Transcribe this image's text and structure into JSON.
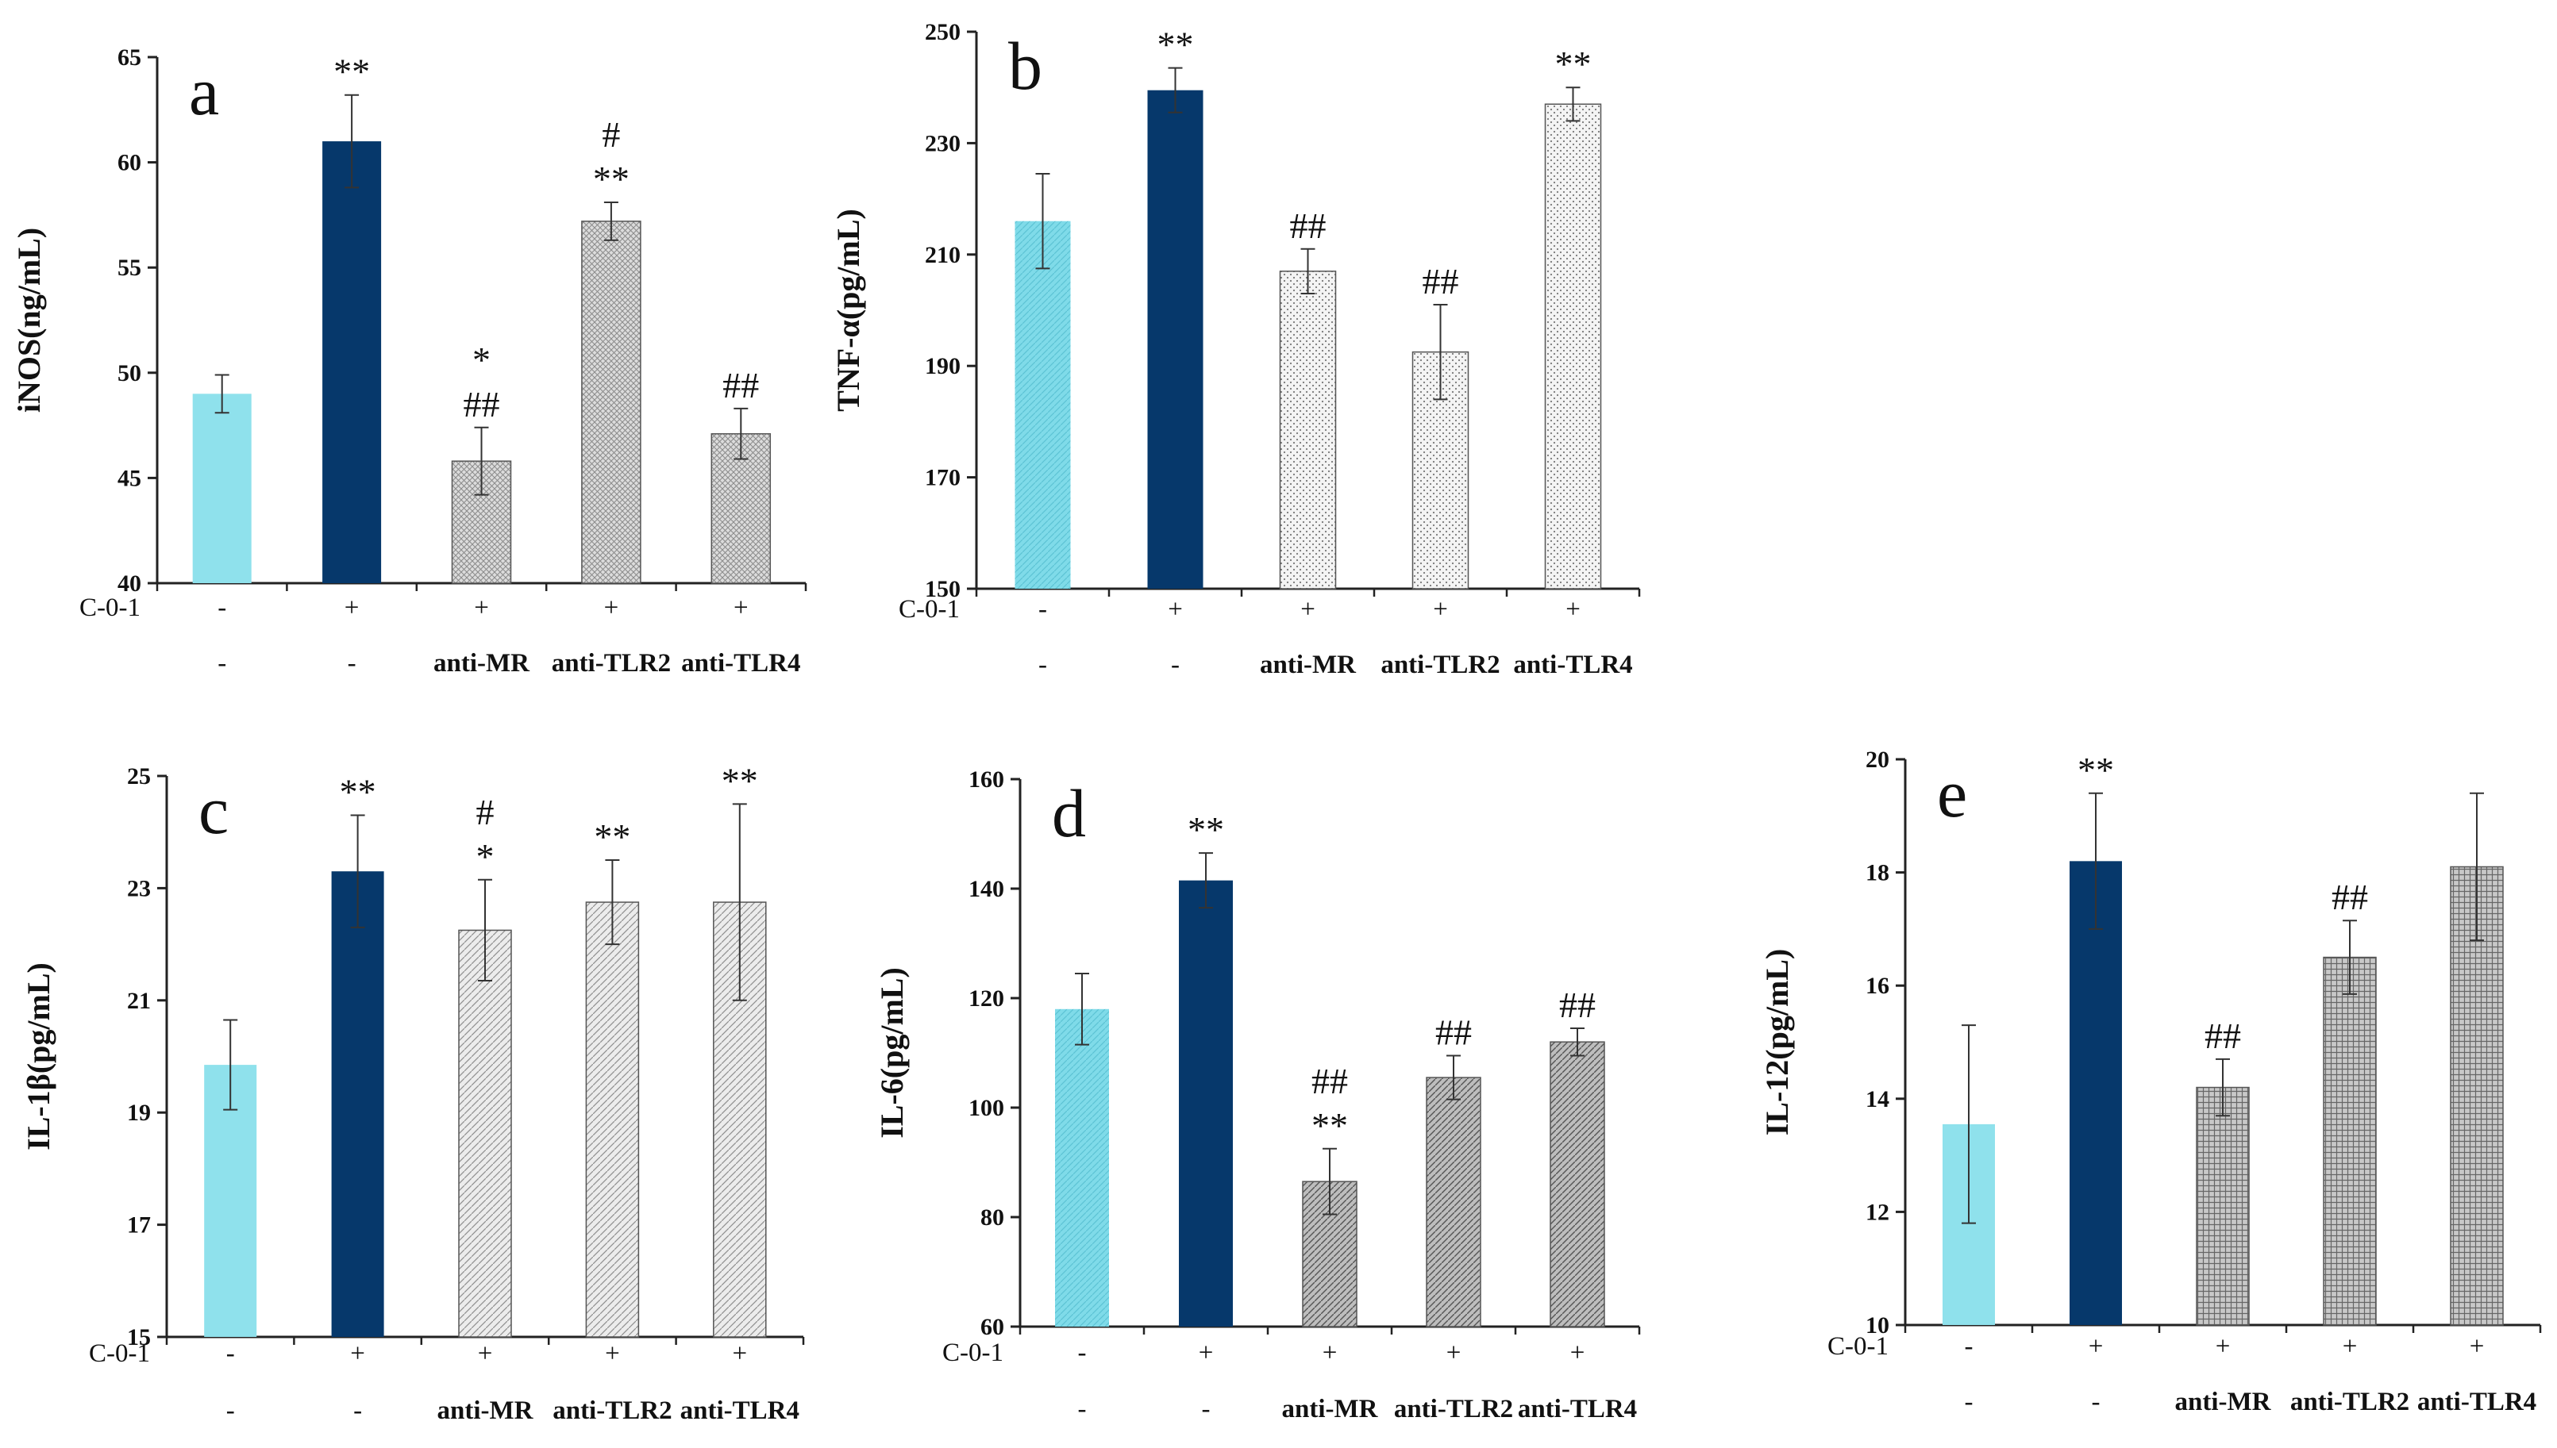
{
  "figure": {
    "rows": {
      "c01_label": "C-0-1"
    },
    "colors": {
      "control": "#8fe1ec",
      "c01": "#06386b",
      "treated_fill": "#e9e9e9",
      "axis": "#222222",
      "dark_hatch": "#888888"
    }
  },
  "chart_data": [
    {
      "id": "a",
      "type": "bar",
      "panel_label": "a",
      "ylabel": "iNOS(ng/mL)",
      "ylim": [
        40,
        65
      ],
      "yticks": [
        40,
        45,
        50,
        55,
        60,
        65
      ],
      "c01_row": [
        "-",
        "+",
        "+",
        "+",
        "+"
      ],
      "categories": [
        "-",
        "-",
        "anti-MR",
        "anti-TLR2",
        "anti-TLR4"
      ],
      "values": [
        49.0,
        61.0,
        45.8,
        57.2,
        47.1
      ],
      "errors": [
        0.9,
        2.2,
        1.6,
        0.9,
        1.2
      ],
      "annotations": [
        [
          "",
          ""
        ],
        [
          "**",
          ""
        ],
        [
          "##",
          "*"
        ],
        [
          "**",
          "#"
        ],
        [
          "##",
          ""
        ]
      ]
    },
    {
      "id": "b",
      "type": "bar",
      "panel_label": "b",
      "ylabel": "TNF-α(pg/mL)",
      "ylim": [
        150,
        250
      ],
      "yticks": [
        150,
        170,
        190,
        210,
        230,
        250
      ],
      "c01_row": [
        "-",
        "+",
        "+",
        "+",
        "+"
      ],
      "categories": [
        "-",
        "-",
        "anti-MR",
        "anti-TLR2",
        "anti-TLR4"
      ],
      "values": [
        216,
        239.5,
        207,
        192.5,
        237
      ],
      "errors": [
        8.5,
        4.0,
        4.0,
        8.5,
        3.0
      ],
      "annotations": [
        [
          "",
          ""
        ],
        [
          "**",
          ""
        ],
        [
          "##",
          ""
        ],
        [
          "##",
          ""
        ],
        [
          "**",
          ""
        ]
      ]
    },
    {
      "id": "c",
      "type": "bar",
      "panel_label": "c",
      "ylabel": "IL-1β(pg/mL)",
      "ylim": [
        15,
        25
      ],
      "yticks": [
        15,
        17,
        19,
        21,
        23,
        25
      ],
      "c01_row": [
        "-",
        "+",
        "+",
        "+",
        "+"
      ],
      "categories": [
        "-",
        "-",
        "anti-MR",
        "anti-TLR2",
        "anti-TLR4"
      ],
      "values": [
        19.85,
        23.3,
        22.25,
        22.75,
        22.75
      ],
      "errors": [
        0.8,
        1.0,
        0.9,
        0.75,
        1.75
      ],
      "annotations": [
        [
          "",
          ""
        ],
        [
          "**",
          ""
        ],
        [
          "*",
          "#"
        ],
        [
          "**",
          ""
        ],
        [
          "**",
          ""
        ]
      ]
    },
    {
      "id": "d",
      "type": "bar",
      "panel_label": "d",
      "ylabel": "IL-6(pg/mL)",
      "ylim": [
        60,
        160
      ],
      "yticks": [
        60,
        80,
        100,
        120,
        140,
        160
      ],
      "c01_row": [
        "-",
        "+",
        "+",
        "+",
        "+"
      ],
      "categories": [
        "-",
        "-",
        "anti-MR",
        "anti-TLR2",
        "anti-TLR4"
      ],
      "values": [
        118,
        141.5,
        86.5,
        105.5,
        112
      ],
      "errors": [
        6.5,
        5.0,
        6.0,
        4.0,
        2.5
      ],
      "annotations": [
        [
          "",
          ""
        ],
        [
          "**",
          ""
        ],
        [
          "**",
          "##"
        ],
        [
          "##",
          ""
        ],
        [
          "##",
          ""
        ]
      ]
    },
    {
      "id": "e",
      "type": "bar",
      "panel_label": "e",
      "ylabel": "IL-12(pg/mL)",
      "ylim": [
        10,
        20
      ],
      "yticks": [
        10,
        12,
        14,
        16,
        18,
        20
      ],
      "c01_row": [
        "-",
        "+",
        "+",
        "+",
        "+"
      ],
      "categories": [
        "-",
        "-",
        "anti-MR",
        "anti-TLR2",
        "anti-TLR4"
      ],
      "values": [
        13.55,
        18.2,
        14.2,
        16.5,
        18.1
      ],
      "errors": [
        1.75,
        1.2,
        0.5,
        0.65,
        1.3
      ],
      "annotations": [
        [
          "",
          ""
        ],
        [
          "**",
          ""
        ],
        [
          "##",
          ""
        ],
        [
          "##",
          ""
        ],
        [
          "",
          ""
        ]
      ]
    }
  ]
}
